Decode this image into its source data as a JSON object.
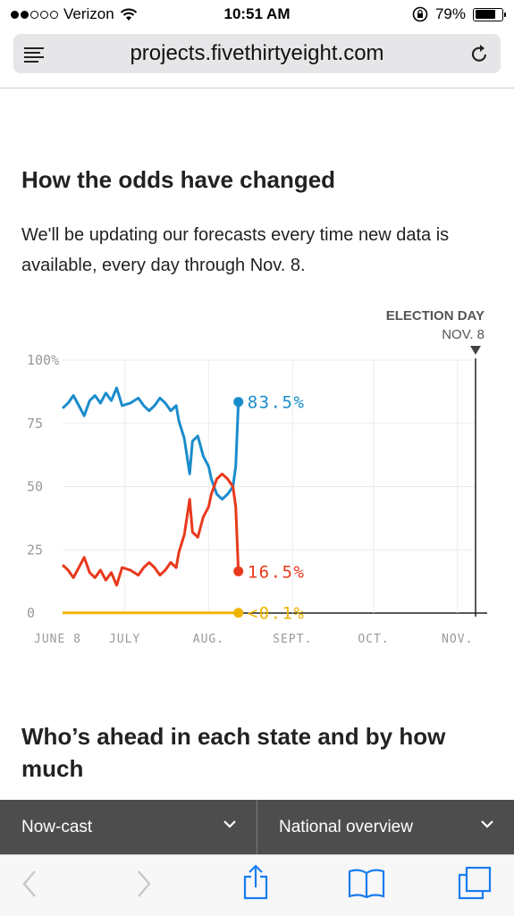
{
  "status_bar": {
    "carrier": "Verizon",
    "time": "10:51 AM",
    "battery": "79%",
    "battery_level": 0.79,
    "signal_bars_filled": 2,
    "signal_bars_total": 5
  },
  "browser": {
    "url": "projects.fivethirtyeight.com"
  },
  "article": {
    "heading": "How the odds have changed",
    "paragraph": "We'll be updating our forecasts every time new data is available, every day through Nov. 8.",
    "heading2": "Who’s ahead in each state and by how much"
  },
  "chart_data": {
    "type": "line",
    "y_ticks": [
      "100%",
      "75",
      "50",
      "25",
      "0"
    ],
    "ylim": [
      0,
      100
    ],
    "x_ticks": [
      "JUNE 8",
      "JULY",
      "AUG.",
      "SEPT.",
      "OCT.",
      "NOV."
    ],
    "x_tick_dates": [
      "2016-06-08",
      "2016-07-01",
      "2016-08-01",
      "2016-09-01",
      "2016-10-01",
      "2016-11-01"
    ],
    "xlim": [
      "2016-06-08",
      "2016-11-08"
    ],
    "marker": {
      "label": "ELECTION DAY",
      "date_label": "NOV. 8",
      "date": "2016-11-08"
    },
    "series": [
      {
        "color": "#1a8ccc",
        "end_label": "83.5%",
        "points": [
          [
            "2016-06-08",
            81
          ],
          [
            "2016-06-10",
            83
          ],
          [
            "2016-06-12",
            86
          ],
          [
            "2016-06-14",
            82
          ],
          [
            "2016-06-16",
            78
          ],
          [
            "2016-06-18",
            84
          ],
          [
            "2016-06-20",
            86
          ],
          [
            "2016-06-22",
            83
          ],
          [
            "2016-06-24",
            87
          ],
          [
            "2016-06-26",
            84
          ],
          [
            "2016-06-28",
            89
          ],
          [
            "2016-06-30",
            82
          ],
          [
            "2016-07-03",
            83
          ],
          [
            "2016-07-06",
            85
          ],
          [
            "2016-07-08",
            82
          ],
          [
            "2016-07-10",
            80
          ],
          [
            "2016-07-12",
            82
          ],
          [
            "2016-07-14",
            85
          ],
          [
            "2016-07-16",
            83
          ],
          [
            "2016-07-18",
            80
          ],
          [
            "2016-07-20",
            82
          ],
          [
            "2016-07-21",
            76
          ],
          [
            "2016-07-23",
            69
          ],
          [
            "2016-07-25",
            55
          ],
          [
            "2016-07-26",
            68
          ],
          [
            "2016-07-28",
            70
          ],
          [
            "2016-07-30",
            62
          ],
          [
            "2016-08-01",
            58
          ],
          [
            "2016-08-02",
            53
          ],
          [
            "2016-08-03",
            50
          ],
          [
            "2016-08-04",
            47
          ],
          [
            "2016-08-06",
            45
          ],
          [
            "2016-08-08",
            47
          ],
          [
            "2016-08-10",
            50
          ],
          [
            "2016-08-11",
            58
          ],
          [
            "2016-08-12",
            83.5
          ]
        ]
      },
      {
        "color": "#e8391c",
        "end_label": "16.5%",
        "points": [
          [
            "2016-06-08",
            19
          ],
          [
            "2016-06-10",
            17
          ],
          [
            "2016-06-12",
            14
          ],
          [
            "2016-06-14",
            18
          ],
          [
            "2016-06-16",
            22
          ],
          [
            "2016-06-18",
            16
          ],
          [
            "2016-06-20",
            14
          ],
          [
            "2016-06-22",
            17
          ],
          [
            "2016-06-24",
            13
          ],
          [
            "2016-06-26",
            16
          ],
          [
            "2016-06-28",
            11
          ],
          [
            "2016-06-30",
            18
          ],
          [
            "2016-07-03",
            17
          ],
          [
            "2016-07-06",
            15
          ],
          [
            "2016-07-08",
            18
          ],
          [
            "2016-07-10",
            20
          ],
          [
            "2016-07-12",
            18
          ],
          [
            "2016-07-14",
            15
          ],
          [
            "2016-07-16",
            17
          ],
          [
            "2016-07-18",
            20
          ],
          [
            "2016-07-20",
            18
          ],
          [
            "2016-07-21",
            24
          ],
          [
            "2016-07-23",
            31
          ],
          [
            "2016-07-25",
            45
          ],
          [
            "2016-07-26",
            32
          ],
          [
            "2016-07-28",
            30
          ],
          [
            "2016-07-30",
            38
          ],
          [
            "2016-08-01",
            42
          ],
          [
            "2016-08-02",
            47
          ],
          [
            "2016-08-03",
            50
          ],
          [
            "2016-08-04",
            53
          ],
          [
            "2016-08-06",
            55
          ],
          [
            "2016-08-08",
            53
          ],
          [
            "2016-08-10",
            50
          ],
          [
            "2016-08-11",
            42
          ],
          [
            "2016-08-12",
            16.5
          ]
        ]
      },
      {
        "color": "#f0b400",
        "end_label": "<0.1%",
        "points": [
          [
            "2016-06-08",
            0.1
          ],
          [
            "2016-08-12",
            0.1
          ]
        ]
      }
    ]
  },
  "selector_bar": {
    "left_label": "Now-cast",
    "right_label": "National overview"
  },
  "toolbar": {
    "icons": [
      "back-icon",
      "forward-icon",
      "share-icon",
      "bookmarks-icon",
      "tabs-icon"
    ]
  }
}
